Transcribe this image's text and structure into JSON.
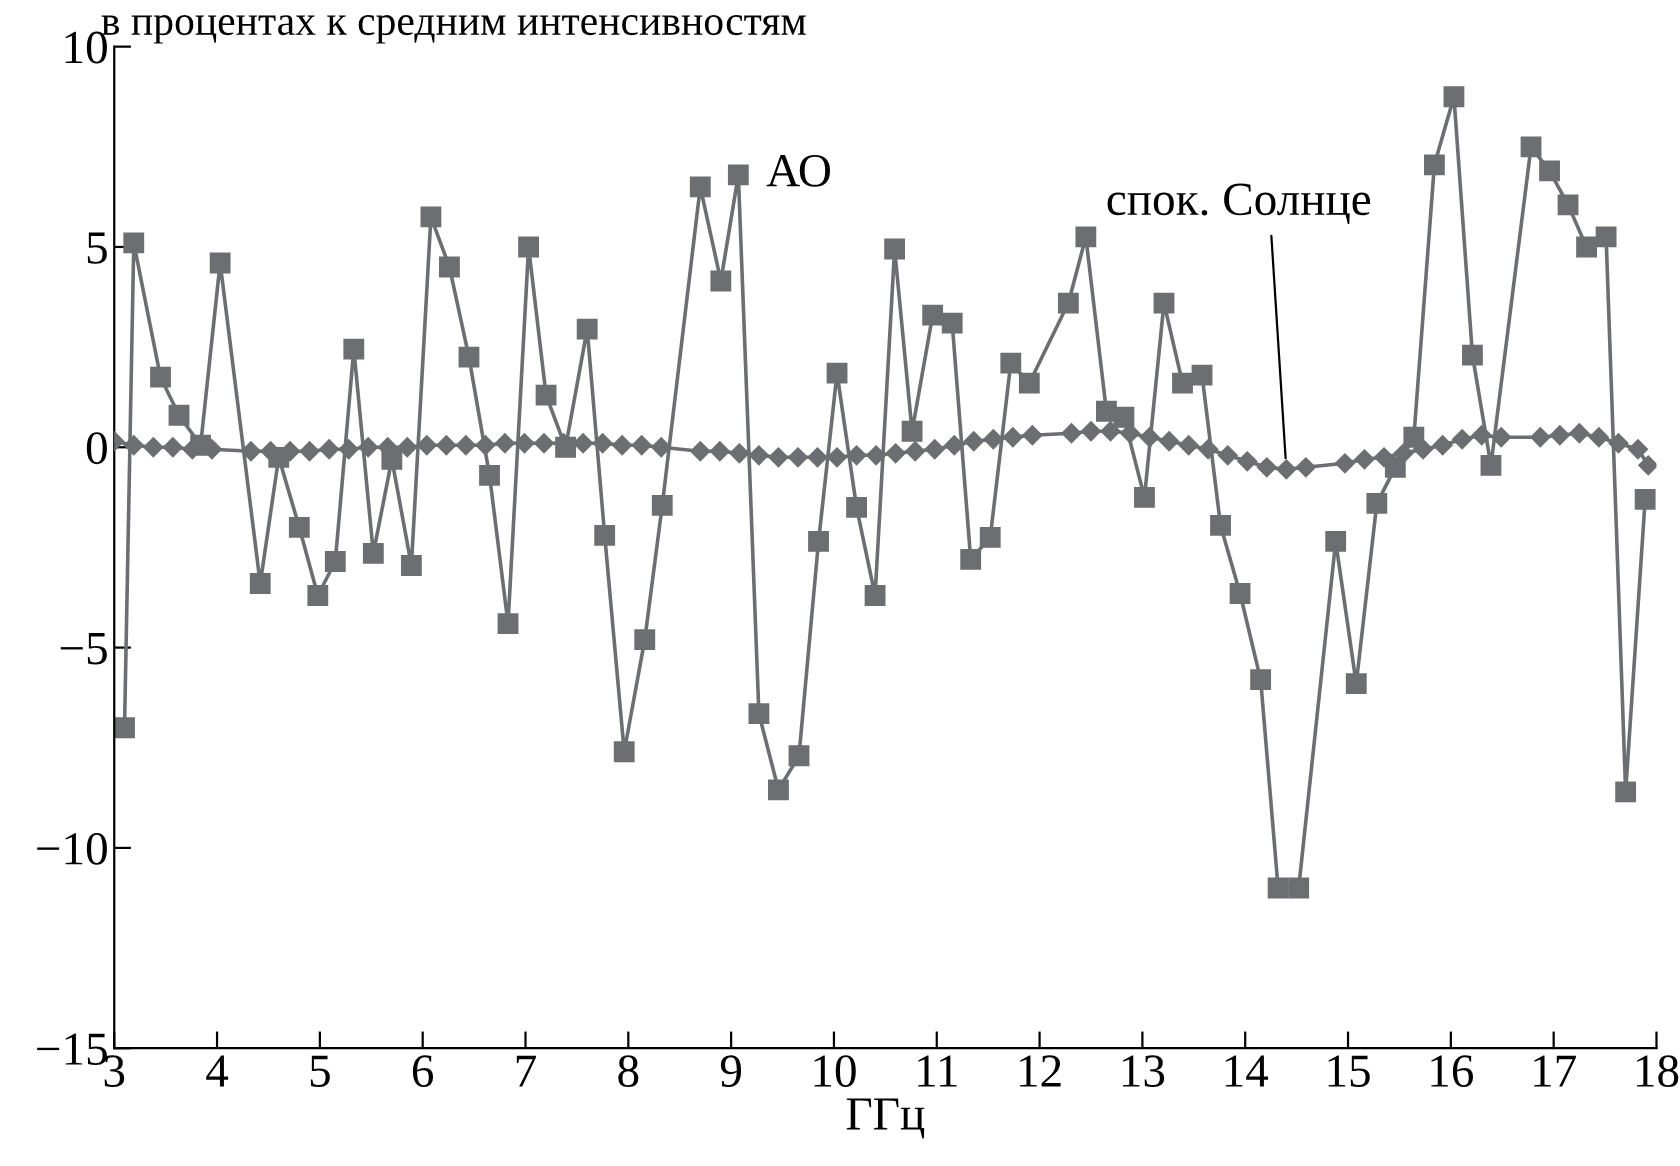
{
  "chart_data": {
    "type": "line",
    "title": "в процентах к средним интенсивностям",
    "xlabel": "ГГц",
    "xlim": [
      3,
      18
    ],
    "xticks": [
      3,
      4,
      5,
      6,
      7,
      8,
      9,
      10,
      11,
      12,
      13,
      14,
      15,
      16,
      17,
      18
    ],
    "ylim": [
      -15,
      10
    ],
    "yticks": [
      {
        "value": -15,
        "label": "−15"
      },
      {
        "value": -10,
        "label": "−10"
      },
      {
        "value": -5,
        "label": "−5"
      },
      0,
      5,
      10
    ],
    "grid": false,
    "legend": false,
    "line_style": "solid",
    "series": [
      {
        "color": "#6d6e71",
        "marker": "square",
        "x": [
          3.1,
          3.19,
          3.45,
          3.63,
          3.84,
          4.03,
          4.42,
          4.6,
          4.8,
          4.98,
          5.15,
          5.33,
          5.52,
          5.7,
          5.89,
          6.08,
          6.26,
          6.45,
          6.65,
          6.83,
          7.03,
          7.2,
          7.39,
          7.6,
          7.77,
          7.96,
          8.16,
          8.33,
          8.7,
          8.9,
          9.07,
          9.27,
          9.46,
          9.66,
          9.85,
          10.03,
          10.22,
          10.4,
          10.59,
          10.76,
          10.96,
          11.15,
          11.33,
          11.52,
          11.72,
          11.9,
          12.28,
          12.45,
          12.65,
          12.82,
          13.02,
          13.21,
          13.39,
          13.58,
          13.76,
          13.95,
          14.15,
          14.32,
          14.52,
          14.88,
          15.08,
          15.28,
          15.46,
          15.64,
          15.84,
          16.03,
          16.21,
          16.39,
          16.78,
          16.96,
          17.14,
          17.32,
          17.51,
          17.7,
          17.89
        ],
        "values": [
          -7.0,
          5.1,
          1.75,
          0.8,
          0.05,
          4.6,
          -3.4,
          -0.25,
          -2.0,
          -3.7,
          -2.85,
          2.45,
          -2.65,
          -0.3,
          -2.95,
          5.75,
          4.5,
          2.25,
          -0.7,
          -4.4,
          5.0,
          1.3,
          0.0,
          2.95,
          -2.2,
          -7.6,
          -4.8,
          -1.45,
          6.5,
          4.15,
          6.8,
          -6.65,
          -8.55,
          -7.7,
          -2.35,
          1.85,
          -1.5,
          -3.7,
          4.95,
          0.4,
          3.3,
          3.1,
          -2.8,
          -2.25,
          2.1,
          1.6,
          3.6,
          5.25,
          0.9,
          0.75,
          -1.25,
          3.6,
          1.6,
          1.8,
          -1.95,
          -3.65,
          -5.8,
          -11.0,
          -11.0,
          -2.35,
          -5.9,
          -1.4,
          -0.5,
          0.25,
          7.05,
          8.75,
          2.3,
          -0.45,
          7.5,
          6.9,
          6.05,
          5.0,
          5.25,
          -8.6,
          -1.3
        ]
      },
      {
        "color": "#6d6e71",
        "marker": "diamond",
        "x": [
          3.0,
          3.19,
          3.38,
          3.57,
          3.76,
          3.95,
          4.33,
          4.52,
          4.71,
          4.9,
          5.09,
          5.28,
          5.47,
          5.66,
          5.85,
          6.04,
          6.23,
          6.42,
          6.61,
          6.8,
          6.99,
          7.18,
          7.37,
          7.56,
          7.75,
          7.94,
          8.13,
          8.32,
          8.7,
          8.89,
          9.08,
          9.27,
          9.46,
          9.65,
          9.84,
          10.03,
          10.22,
          10.41,
          10.6,
          10.79,
          10.98,
          11.17,
          11.36,
          11.55,
          11.74,
          11.93,
          12.31,
          12.5,
          12.69,
          12.88,
          13.07,
          13.26,
          13.45,
          13.64,
          13.83,
          14.02,
          14.21,
          14.4,
          14.59,
          14.97,
          15.16,
          15.35,
          15.54,
          15.73,
          15.92,
          16.11,
          16.3,
          16.49,
          16.87,
          17.06,
          17.25,
          17.44,
          17.63,
          17.82,
          17.92
        ],
        "values": [
          0.15,
          0.05,
          0.0,
          0.0,
          -0.05,
          -0.05,
          -0.1,
          -0.1,
          -0.1,
          -0.1,
          -0.05,
          -0.05,
          0.0,
          0.0,
          0.0,
          0.05,
          0.05,
          0.05,
          0.05,
          0.1,
          0.1,
          0.1,
          0.1,
          0.1,
          0.1,
          0.05,
          0.05,
          0.0,
          -0.1,
          -0.1,
          -0.15,
          -0.2,
          -0.25,
          -0.25,
          -0.25,
          -0.25,
          -0.2,
          -0.2,
          -0.15,
          -0.1,
          -0.05,
          0.05,
          0.15,
          0.2,
          0.25,
          0.3,
          0.35,
          0.4,
          0.4,
          0.35,
          0.25,
          0.15,
          0.05,
          -0.05,
          -0.2,
          -0.35,
          -0.5,
          -0.55,
          -0.5,
          -0.4,
          -0.3,
          -0.25,
          -0.15,
          -0.05,
          0.05,
          0.2,
          0.3,
          0.25,
          0.25,
          0.3,
          0.35,
          0.25,
          0.1,
          -0.05,
          -0.45
        ]
      }
    ],
    "annotations": [
      {
        "text": "АО",
        "x": 9.07,
        "y": 6.8
      },
      {
        "text": "спок. Солнце",
        "x": 14.4,
        "y": -0.55
      }
    ]
  }
}
